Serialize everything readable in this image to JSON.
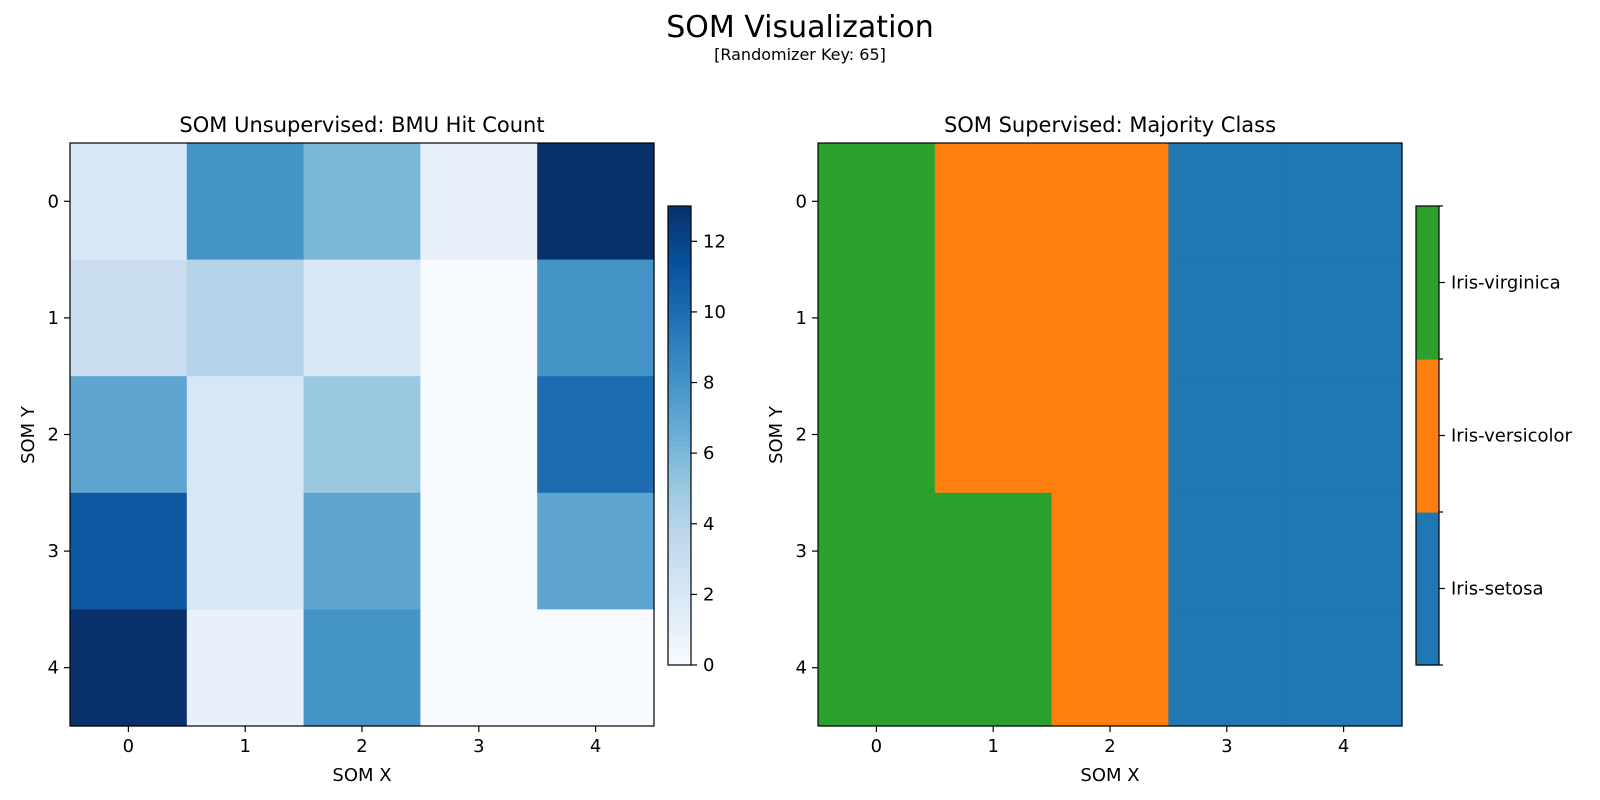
{
  "figure": {
    "title": "SOM Visualization",
    "subtitle": "[Randomizer Key: 65]"
  },
  "chart_data": [
    {
      "type": "heatmap",
      "title": "SOM Unsupervised: BMU Hit Count",
      "xlabel": "SOM X",
      "ylabel": "SOM Y",
      "x_ticks": [
        "0",
        "1",
        "2",
        "3",
        "4"
      ],
      "y_ticks": [
        "0",
        "1",
        "2",
        "3",
        "4"
      ],
      "colormap": "Blues",
      "vmin": 0,
      "vmax": 13,
      "colorbar_ticks": [
        0,
        2,
        4,
        6,
        8,
        10,
        12
      ],
      "values": [
        [
          2,
          8,
          6,
          1,
          13
        ],
        [
          3,
          4,
          2,
          0,
          8
        ],
        [
          7,
          2,
          5,
          0,
          10
        ],
        [
          11,
          2,
          7,
          0,
          7
        ],
        [
          13,
          1,
          8,
          0,
          0
        ]
      ]
    },
    {
      "type": "heatmap",
      "title": "SOM Supervised: Majority Class",
      "xlabel": "SOM X",
      "ylabel": "SOM Y",
      "x_ticks": [
        "0",
        "1",
        "2",
        "3",
        "4"
      ],
      "y_ticks": [
        "0",
        "1",
        "2",
        "3",
        "4"
      ],
      "classes": [
        {
          "name": "Iris-setosa",
          "color": "#1f77b4"
        },
        {
          "name": "Iris-versicolor",
          "color": "#ff7f0e"
        },
        {
          "name": "Iris-virginica",
          "color": "#2ca02c"
        }
      ],
      "values": [
        [
          2,
          1,
          1,
          0,
          0
        ],
        [
          2,
          1,
          1,
          0,
          0
        ],
        [
          2,
          1,
          1,
          0,
          0
        ],
        [
          2,
          2,
          1,
          0,
          0
        ],
        [
          2,
          2,
          1,
          0,
          0
        ]
      ]
    }
  ]
}
